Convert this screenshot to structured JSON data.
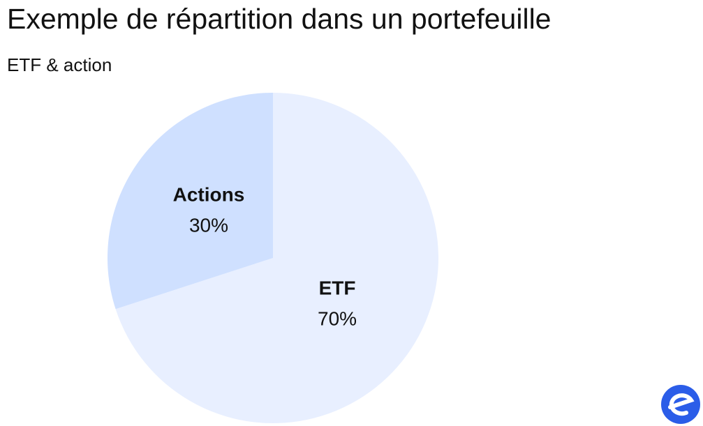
{
  "chart_data": {
    "type": "pie",
    "title": "Exemple de répartition dans un portefeuille",
    "subtitle": "ETF & action",
    "categories": [
      "ETF",
      "Actions"
    ],
    "values": [
      70,
      30
    ],
    "value_labels": [
      "70%",
      "30%"
    ],
    "colors": [
      "#e8efff",
      "#cfe0ff"
    ]
  }
}
